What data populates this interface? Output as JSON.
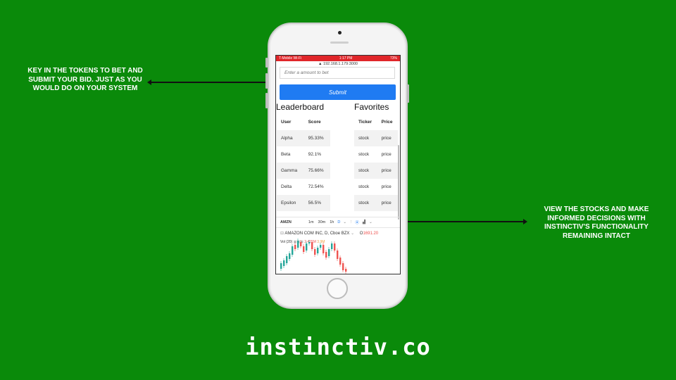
{
  "callouts": {
    "left": "KEY IN THE TOKENS TO BET AND SUBMIT YOUR BID. JUST AS YOU WOULD DO ON YOUR SYSTEM",
    "right": "VIEW THE STOCKS AND MAKE INFORMED DECISIONS WITH INSTINCTIV'S FUNCTIONALITY REMAINING INTACT"
  },
  "brand": "instinctiv.co",
  "colors": {
    "background": "#0a8a0a",
    "submit": "#1f7bf2",
    "status_bar": "#e0262a",
    "candle_up": "#26a69a",
    "candle_down": "#ef5350"
  },
  "phone": {
    "status": {
      "carrier": "T-Mobile Wi-Fi",
      "time": "1:17 PM",
      "battery": "73%"
    },
    "url": "192.168.1.179:3000",
    "bet": {
      "placeholder": "Enter a amount to bet",
      "submit_label": "Submit"
    },
    "leaderboard": {
      "title": "Leaderboard",
      "headers": [
        "User",
        "Score"
      ],
      "rows": [
        [
          "Alpha",
          "95.33%"
        ],
        [
          "Beta",
          "92.1%"
        ],
        [
          "Gamma",
          "75.66%"
        ],
        [
          "Delta",
          "72.54%"
        ],
        [
          "Epsilon",
          "56.5%"
        ]
      ]
    },
    "favorites": {
      "title": "Favorites",
      "headers": [
        "Ticker",
        "Price"
      ],
      "rows": [
        [
          "stock",
          "price"
        ],
        [
          "stock",
          "price"
        ],
        [
          "stock",
          "price"
        ],
        [
          "stock",
          "price"
        ],
        [
          "stock",
          "price"
        ]
      ]
    },
    "chart": {
      "symbol": "AMZN",
      "intervals": [
        "1m",
        "30m",
        "1h",
        "D"
      ],
      "active_interval": "D",
      "title": "AMAZON COM INC, D, Cboe BZX",
      "price_label": "O",
      "price": "1691.20",
      "vol_label": "Vol (20)",
      "vol_value1": "2.421M",
      "vol_value2": "3.9M"
    }
  }
}
